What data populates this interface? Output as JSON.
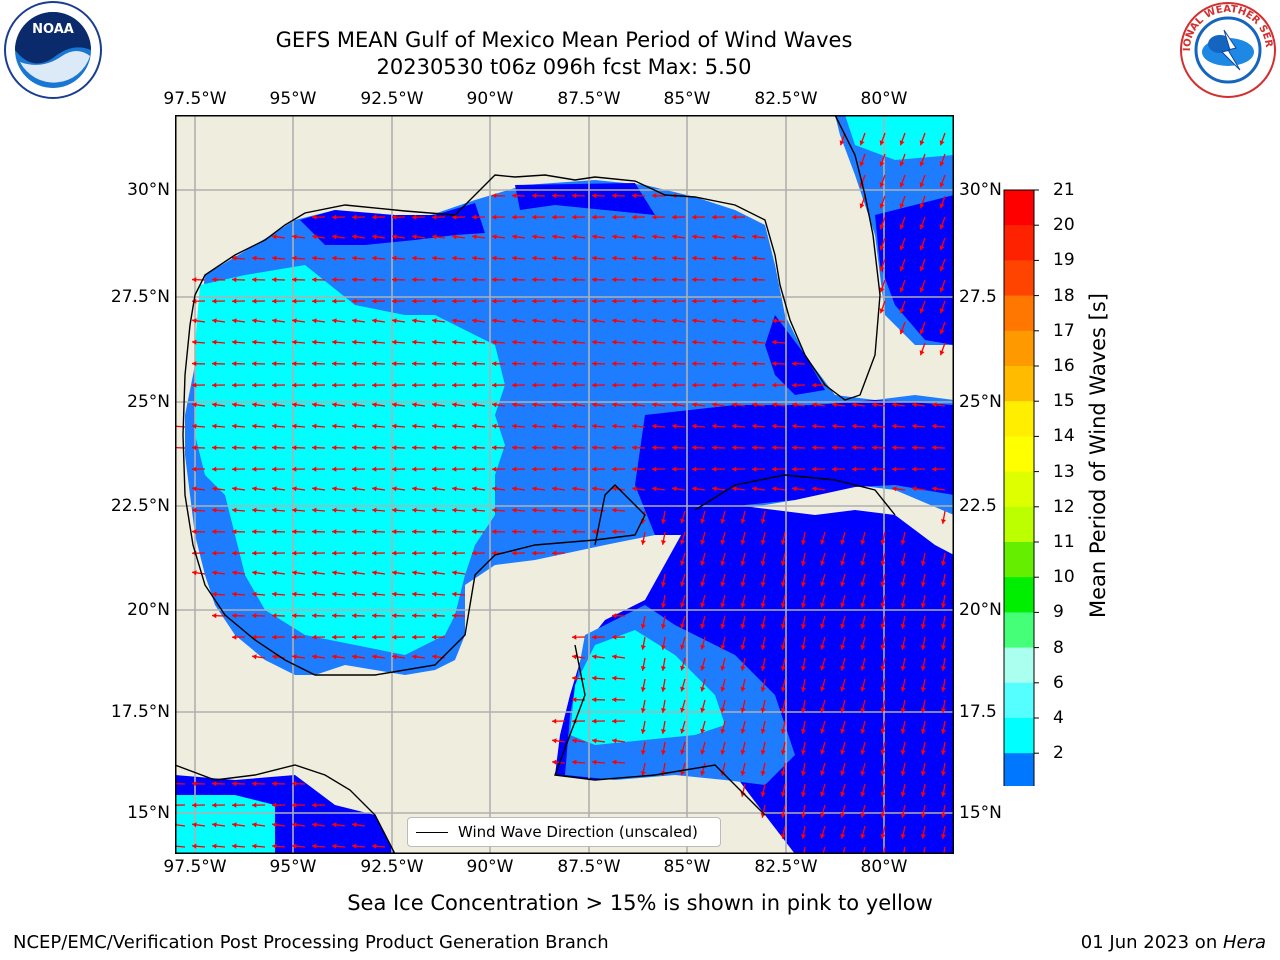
{
  "title_line1": "GEFS MEAN Gulf of Mexico Mean Period of Wind Waves",
  "title_line2": "20230530 t06z 096h fcst   Max: 5.50",
  "lon_ticks": [
    "97.5°W",
    "95°W",
    "92.5°W",
    "90°W",
    "87.5°W",
    "85°W",
    "82.5°W",
    "80°W"
  ],
  "lat_ticks_left": [
    "30°N",
    "27.5°N",
    "25°N",
    "22.5°N",
    "20°N",
    "17.5°N",
    "15°N"
  ],
  "lat_ticks_right": [
    "30°N",
    "27.5",
    "25°N",
    "22.5",
    "20°N",
    "17.5",
    "15°N"
  ],
  "legend_label": "Wind Wave Direction (unscaled)",
  "colorbar": {
    "label": "Mean Period of Wind Waves [s]",
    "ticks": [
      "21",
      "20",
      "19",
      "18",
      "17",
      "16",
      "15",
      "14",
      "13",
      "12",
      "11",
      "10",
      "9",
      "8",
      "6",
      "4",
      "2"
    ],
    "colors": [
      "#ff0000",
      "#ff2200",
      "#ff4400",
      "#ff7700",
      "#ff9900",
      "#ffbb00",
      "#ffee00",
      "#ffff00",
      "#ddff00",
      "#bbff00",
      "#66ee00",
      "#00ee00",
      "#44ff77",
      "#aaffee",
      "#55ffff",
      "#00ffff",
      "#0077ff"
    ],
    "extend_color": "#0000ff"
  },
  "sea_ice_note": "Sea Ice Concentration > 15% is shown in pink to yellow",
  "footer_left": "NCEP/EMC/Verification Post Processing Product Generation Branch",
  "footer_right_date": "01 Jun 2023 on ",
  "footer_right_host": "Hera",
  "logo_left": "NOAA",
  "logo_right": "NATIONAL WEATHER SERVICE",
  "arrow_color": "#ff0000",
  "land_color": "#efedde"
}
